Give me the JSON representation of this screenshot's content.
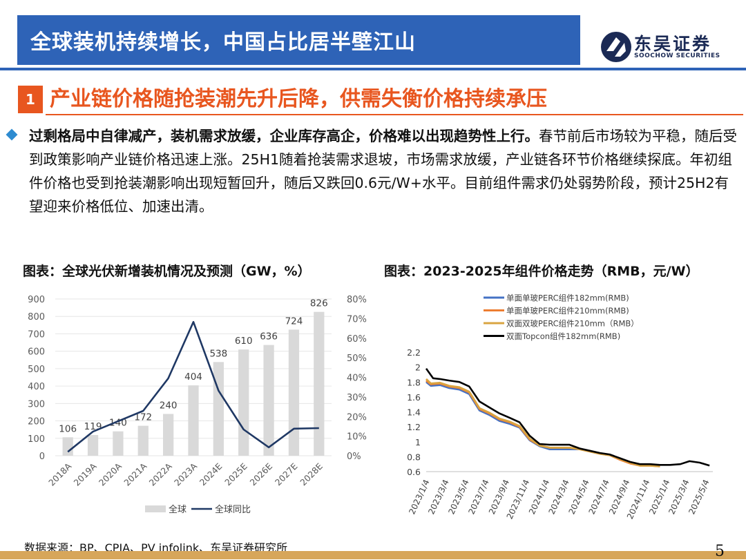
{
  "header": {
    "title": "全球装机持续增长，中国占比居半壁江山",
    "logo_cn": "东吴证券",
    "logo_en": "SOOCHOW SECURITIES"
  },
  "section": {
    "number": "1",
    "title": "产业链价格随抢装潮先升后降，供需失衡价格持续承压"
  },
  "body": {
    "bold_part": "过剩格局中自律减产，装机需求放缓，企业库存高企，价格难以出现趋势性上行。",
    "rest": "春节前后市场较为平稳，随后受到政策影响产业链价格迅速上涨。25H1随着抢装需求退坡，市场需求放缓，产业链各环节价格继续探底。年初组件价格也受到抢装潮影响出现短暂回升，随后又跌回0.6元/W+水平。目前组件需求仍处弱势阶段，预计25H2有望迎来价格低位、加速出清。"
  },
  "captions": {
    "left": "图表：全球光伏新增装机情况及预测（GW，%）",
    "right": "图表：2023-2025年组件价格走势（RMB，元/W）"
  },
  "footer": {
    "source": "数据来源：BP、CPIA、PV infolink、东吴证券研究所",
    "page": "5"
  },
  "colors": {
    "brand_blue": "#2E63B7",
    "accent_orange": "#E8561F",
    "footer_gold": "#D7A65A",
    "bar_gray": "#D9D9D9",
    "line_navy": "#1F3864"
  },
  "chart_data": [
    {
      "type": "bar",
      "categories": [
        "2018A",
        "2019A",
        "2020A",
        "2021A",
        "2022A",
        "2023A",
        "2024E",
        "2025E",
        "2026E",
        "2027E",
        "2028E"
      ],
      "series": [
        {
          "name": "全球",
          "axis": "left",
          "type": "bar",
          "values": [
            106,
            119,
            140,
            172,
            240,
            404,
            538,
            610,
            636,
            724,
            826
          ]
        },
        {
          "name": "全球同比",
          "axis": "right",
          "type": "line",
          "values": [
            2,
            12.3,
            17.6,
            22.9,
            39.5,
            68.3,
            33.2,
            13.4,
            4.3,
            13.8,
            14.1
          ]
        }
      ],
      "value_labels": [
        "106",
        "119",
        "140",
        "172",
        "240",
        "404",
        "538",
        "610",
        "636",
        "724",
        "826"
      ],
      "ylim_left": [
        0,
        900
      ],
      "yticks_left": [
        "0",
        "100",
        "200",
        "300",
        "400",
        "500",
        "600",
        "700",
        "800",
        "900"
      ],
      "ylim_right": [
        0,
        80
      ],
      "yticks_right": [
        "0%",
        "10%",
        "20%",
        "30%",
        "40%",
        "50%",
        "60%",
        "70%",
        "80%"
      ],
      "legend": [
        "全球",
        "全球同比"
      ],
      "legend_position": "bottom",
      "grid": true
    },
    {
      "type": "line",
      "x_start": "2023/1/4",
      "x_tick_labels": [
        "2023/1/4",
        "2023/3/4",
        "2023/5/4",
        "2023/7/4",
        "2023/9/4",
        "2023/11/4",
        "2024/1/4",
        "2024/3/4",
        "2024/5/4",
        "2024/7/4",
        "2024/9/4",
        "2024/11/4",
        "2025/1/4",
        "2025/3/4",
        "2025/5/4"
      ],
      "ylim": [
        0.6,
        2.2
      ],
      "yticks": [
        "0.6",
        "0.8",
        "1",
        "1.2",
        "1.4",
        "1.6",
        "1.8",
        "2",
        "2.2"
      ],
      "legend_position": "top",
      "grid": false,
      "series": [
        {
          "name": "单面单玻PERC组件182mm(RMB)",
          "color": "#4472C4",
          "points": [
            [
              "2023/1/4",
              1.8
            ],
            [
              "2023/1/18",
              1.75
            ],
            [
              "2023/2/15",
              1.76
            ],
            [
              "2023/3/15",
              1.72
            ],
            [
              "2023/4/15",
              1.7
            ],
            [
              "2023/5/15",
              1.64
            ],
            [
              "2023/6/15",
              1.42
            ],
            [
              "2023/7/15",
              1.36
            ],
            [
              "2023/8/15",
              1.28
            ],
            [
              "2023/9/15",
              1.24
            ],
            [
              "2023/10/15",
              1.19
            ],
            [
              "2023/11/15",
              1.02
            ],
            [
              "2023/12/15",
              0.94
            ],
            [
              "2024/1/15",
              0.9
            ],
            [
              "2024/2/15",
              0.9
            ],
            [
              "2024/3/15",
              0.9
            ],
            [
              "2024/4/15",
              0.9
            ]
          ]
        },
        {
          "name": "单面单玻PERC组件210mm(RMB)",
          "color": "#ED7D31",
          "points": [
            [
              "2023/1/4",
              1.82
            ],
            [
              "2023/1/18",
              1.77
            ],
            [
              "2023/2/15",
              1.78
            ],
            [
              "2023/3/15",
              1.74
            ],
            [
              "2023/4/15",
              1.72
            ],
            [
              "2023/5/15",
              1.66
            ],
            [
              "2023/6/15",
              1.44
            ],
            [
              "2023/7/15",
              1.38
            ],
            [
              "2023/8/15",
              1.3
            ],
            [
              "2023/9/15",
              1.26
            ],
            [
              "2023/10/15",
              1.2
            ],
            [
              "2023/11/15",
              1.03
            ],
            [
              "2023/12/15",
              0.95
            ],
            [
              "2024/1/15",
              0.92
            ],
            [
              "2024/2/15",
              0.92
            ],
            [
              "2024/3/15",
              0.92
            ],
            [
              "2024/4/15",
              0.9
            ],
            [
              "2024/5/15",
              0.87
            ],
            [
              "2024/6/15",
              0.84
            ],
            [
              "2024/7/15",
              0.82
            ],
            [
              "2024/8/15",
              0.76
            ],
            [
              "2024/9/15",
              0.71
            ],
            [
              "2024/10/15",
              0.68
            ],
            [
              "2024/11/15",
              0.68
            ],
            [
              "2024/12/15",
              0.67
            ]
          ]
        },
        {
          "name": "双面双玻PERC组件210mm（RMB）",
          "color": "#D9A441",
          "points": [
            [
              "2023/1/4",
              1.84
            ],
            [
              "2023/1/18",
              1.78
            ],
            [
              "2023/2/15",
              1.79
            ],
            [
              "2023/3/15",
              1.75
            ],
            [
              "2023/4/15",
              1.73
            ],
            [
              "2023/5/15",
              1.67
            ],
            [
              "2023/6/15",
              1.45
            ],
            [
              "2023/7/15",
              1.39
            ],
            [
              "2023/8/15",
              1.31
            ],
            [
              "2023/9/15",
              1.27
            ],
            [
              "2023/10/15",
              1.21
            ],
            [
              "2023/11/15",
              1.04
            ],
            [
              "2023/12/15",
              0.95
            ],
            [
              "2024/1/15",
              0.92
            ],
            [
              "2024/2/15",
              0.92
            ],
            [
              "2024/3/15",
              0.92
            ],
            [
              "2024/4/15",
              0.9
            ],
            [
              "2024/5/15",
              0.87
            ],
            [
              "2024/6/15",
              0.84
            ],
            [
              "2024/7/15",
              0.82
            ],
            [
              "2024/8/15",
              0.77
            ],
            [
              "2024/9/15",
              0.72
            ],
            [
              "2024/10/15",
              0.68
            ],
            [
              "2024/11/15",
              0.68
            ],
            [
              "2024/12/15",
              0.67
            ]
          ]
        },
        {
          "name": "双面Topcon组件182mm(RMB)",
          "color": "#000000",
          "points": [
            [
              "2023/1/4",
              1.98
            ],
            [
              "2023/1/25",
              1.85
            ],
            [
              "2023/2/15",
              1.84
            ],
            [
              "2023/3/15",
              1.82
            ],
            [
              "2023/4/15",
              1.8
            ],
            [
              "2023/5/15",
              1.74
            ],
            [
              "2023/6/15",
              1.54
            ],
            [
              "2023/7/15",
              1.46
            ],
            [
              "2023/8/15",
              1.38
            ],
            [
              "2023/9/15",
              1.32
            ],
            [
              "2023/10/15",
              1.26
            ],
            [
              "2023/11/15",
              1.08
            ],
            [
              "2023/12/15",
              0.97
            ],
            [
              "2024/1/15",
              0.96
            ],
            [
              "2024/2/15",
              0.96
            ],
            [
              "2024/3/15",
              0.96
            ],
            [
              "2024/4/15",
              0.91
            ],
            [
              "2024/5/15",
              0.88
            ],
            [
              "2024/6/15",
              0.85
            ],
            [
              "2024/7/15",
              0.83
            ],
            [
              "2024/8/15",
              0.78
            ],
            [
              "2024/9/15",
              0.73
            ],
            [
              "2024/10/15",
              0.7
            ],
            [
              "2024/11/15",
              0.7
            ],
            [
              "2024/12/15",
              0.69
            ],
            [
              "2025/1/15",
              0.69
            ],
            [
              "2025/2/15",
              0.7
            ],
            [
              "2025/3/15",
              0.74
            ],
            [
              "2025/4/15",
              0.72
            ],
            [
              "2025/5/15",
              0.68
            ]
          ]
        }
      ]
    }
  ]
}
